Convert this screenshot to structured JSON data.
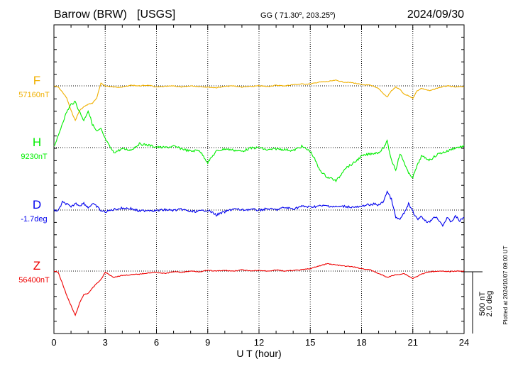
{
  "header": {
    "station": "Barrow (BRW)",
    "agency": "[USGS]",
    "coords_prefix": "GG ( 71.30",
    "coords_mid": ", 203.25",
    "coords_suffix": ")",
    "date": "2024/09/30"
  },
  "scale_label_1": "500 nT",
  "scale_label_2": "2.0 deg",
  "plotted_note": "Plotted at 2024/10/07 09:00 UT",
  "chart_data": {
    "type": "line",
    "xlabel": "U T (hour)",
    "xlim": [
      0,
      24
    ],
    "xticks": [
      0,
      3,
      6,
      9,
      12,
      15,
      18,
      21,
      24
    ],
    "grid": true,
    "series": [
      {
        "name": "F",
        "baseline_label": "57160nT",
        "color": "#f0b000",
        "x": [
          0,
          0.25,
          0.5,
          0.75,
          1,
          1.25,
          1.5,
          1.75,
          2,
          2.25,
          2.5,
          2.75,
          3,
          3.5,
          4,
          4.5,
          5,
          5.5,
          6,
          6.5,
          7,
          7.5,
          8,
          8.5,
          9,
          9.5,
          10,
          10.5,
          11,
          11.5,
          12,
          12.5,
          13,
          13.5,
          14,
          14.5,
          15,
          15.5,
          16,
          16.5,
          17,
          17.5,
          18,
          18.5,
          19,
          19.25,
          19.5,
          19.75,
          20,
          20.25,
          20.5,
          20.75,
          21,
          21.25,
          21.5,
          22,
          22.5,
          23,
          23.5,
          24
        ],
        "values": [
          57160,
          57150,
          57110,
          57060,
          56960,
          56880,
          56960,
          56990,
          57010,
          57020,
          57060,
          57180,
          57160,
          57150,
          57150,
          57165,
          57160,
          57165,
          57150,
          57155,
          57160,
          57150,
          57160,
          57155,
          57150,
          57145,
          57155,
          57160,
          57150,
          57155,
          57160,
          57155,
          57165,
          57160,
          57170,
          57175,
          57175,
          57190,
          57195,
          57205,
          57190,
          57185,
          57170,
          57165,
          57140,
          57100,
          57070,
          57120,
          57150,
          57130,
          57090,
          57080,
          57060,
          57120,
          57140,
          57120,
          57145,
          57160,
          57150,
          57155
        ]
      },
      {
        "name": "H",
        "baseline_label": "9230nT",
        "color": "#00ee00",
        "x": [
          0,
          0.25,
          0.5,
          0.75,
          1,
          1.25,
          1.5,
          1.75,
          2,
          2.25,
          2.5,
          2.75,
          3,
          3.25,
          3.5,
          4,
          4.5,
          5,
          5.5,
          6,
          6.5,
          7,
          7.5,
          8,
          8.5,
          9,
          9.5,
          10,
          10.5,
          11,
          11.5,
          12,
          12.5,
          13,
          13.5,
          14,
          14.5,
          15,
          15.25,
          15.5,
          15.75,
          16,
          16.25,
          16.5,
          16.75,
          17,
          17.5,
          18,
          18.5,
          19,
          19.25,
          19.5,
          19.75,
          20,
          20.25,
          20.5,
          20.75,
          21,
          21.25,
          21.5,
          22,
          22.5,
          23,
          23.5,
          24
        ],
        "values": [
          9240,
          9320,
          9430,
          9520,
          9580,
          9600,
          9520,
          9450,
          9530,
          9420,
          9360,
          9380,
          9300,
          9240,
          9190,
          9220,
          9210,
          9260,
          9250,
          9235,
          9230,
          9240,
          9220,
          9200,
          9210,
          9110,
          9200,
          9220,
          9210,
          9200,
          9225,
          9230,
          9210,
          9220,
          9215,
          9205,
          9240,
          9200,
          9140,
          9060,
          9020,
          8990,
          8980,
          8960,
          9000,
          9060,
          9100,
          9160,
          9180,
          9190,
          9220,
          9280,
          9130,
          9050,
          9180,
          9110,
          9020,
          8990,
          9080,
          9160,
          9130,
          9180,
          9200,
          9230,
          9240
        ]
      },
      {
        "name": "D",
        "baseline_label": "-1.7deg",
        "color": "#0000ee",
        "x": [
          0,
          0.25,
          0.5,
          0.75,
          1,
          1.25,
          1.5,
          1.75,
          2,
          2.25,
          2.5,
          2.75,
          3,
          3.5,
          4,
          4.5,
          5,
          5.5,
          6,
          6.5,
          7,
          7.5,
          8,
          8.5,
          9,
          9.5,
          10,
          10.5,
          11,
          11.5,
          12,
          12.5,
          13,
          13.5,
          14,
          14.5,
          15,
          15.5,
          16,
          16.5,
          17,
          17.5,
          18,
          18.25,
          18.5,
          18.75,
          19,
          19.25,
          19.5,
          19.75,
          20,
          20.25,
          20.5,
          20.75,
          21,
          21.25,
          21.5,
          21.75,
          22,
          22.25,
          22.5,
          22.75,
          23,
          23.25,
          23.5,
          23.75,
          24
        ],
        "values": [
          -1.7,
          -1.73,
          -1.45,
          -1.5,
          -1.62,
          -1.48,
          -1.55,
          -1.48,
          -1.62,
          -1.5,
          -1.58,
          -1.72,
          -1.76,
          -1.68,
          -1.64,
          -1.65,
          -1.74,
          -1.7,
          -1.72,
          -1.69,
          -1.71,
          -1.68,
          -1.75,
          -1.74,
          -1.7,
          -1.86,
          -1.76,
          -1.66,
          -1.7,
          -1.68,
          -1.7,
          -1.66,
          -1.69,
          -1.62,
          -1.66,
          -1.58,
          -1.6,
          -1.57,
          -1.56,
          -1.6,
          -1.58,
          -1.61,
          -1.6,
          -1.52,
          -1.55,
          -1.5,
          -1.54,
          -1.45,
          -1.1,
          -1.35,
          -1.95,
          -2.0,
          -1.8,
          -1.5,
          -1.75,
          -2.0,
          -1.9,
          -2.05,
          -2.1,
          -1.9,
          -2.0,
          -2.2,
          -1.96,
          -2.08,
          -1.9,
          -2.05,
          -1.93
        ]
      },
      {
        "name": "Z",
        "baseline_label": "56400nT",
        "color": "#ee0000",
        "x": [
          0,
          0.25,
          0.5,
          0.75,
          1,
          1.25,
          1.5,
          1.75,
          2,
          2.25,
          2.5,
          2.75,
          3,
          3.5,
          4,
          4.5,
          5,
          5.5,
          6,
          6.5,
          7,
          7.5,
          8,
          8.5,
          9,
          9.5,
          10,
          10.5,
          11,
          11.5,
          12,
          12.5,
          13,
          13.5,
          14,
          14.5,
          15,
          15.5,
          16,
          16.5,
          17,
          17.5,
          18,
          18.5,
          19,
          19.5,
          20,
          20.5,
          21,
          21.5,
          22,
          22.5,
          23,
          23.5,
          24
        ],
        "values": [
          56400,
          56390,
          56300,
          56200,
          56120,
          56040,
          56140,
          56210,
          56220,
          56260,
          56300,
          56330,
          56390,
          56350,
          56365,
          56370,
          56375,
          56385,
          56390,
          56380,
          56395,
          56390,
          56400,
          56395,
          56405,
          56400,
          56405,
          56400,
          56410,
          56400,
          56405,
          56400,
          56410,
          56400,
          56405,
          56410,
          56420,
          56440,
          56460,
          56450,
          56440,
          56435,
          56420,
          56410,
          56380,
          56350,
          56370,
          56380,
          56340,
          56375,
          56395,
          56400,
          56395,
          56400,
          56400
        ]
      }
    ]
  }
}
